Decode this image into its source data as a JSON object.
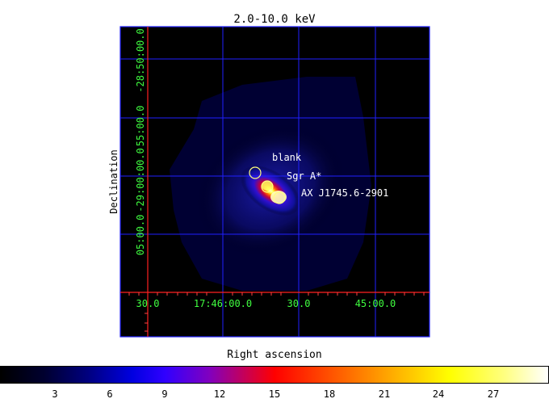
{
  "title": "2.0-10.0 keV",
  "x_axis_label": "Right ascension",
  "y_axis_label": "Declination",
  "ra_ticks": [
    "30.0",
    "17:46:00.0",
    "30.0",
    "45:00.0"
  ],
  "dec_ticks": [
    "50:00.0",
    "55:00.0",
    "-29:00:00.0",
    "05:00.0"
  ],
  "dec_top_tick": "-28:50:00.0",
  "sources": [
    {
      "label": "blank",
      "color": "#ffff80"
    },
    {
      "label": "Sgr A*",
      "color": "#ffff80"
    },
    {
      "label": "AX J1745.6-2901",
      "color": "#ffff80"
    }
  ],
  "colorbar_ticks": [
    "3",
    "6",
    "9",
    "12",
    "15",
    "18",
    "21",
    "24",
    "27"
  ],
  "colors": {
    "grid": "#2020ff",
    "axis": "#ff2020",
    "tick_text": "#40ff40",
    "frame": "#2020ff"
  }
}
